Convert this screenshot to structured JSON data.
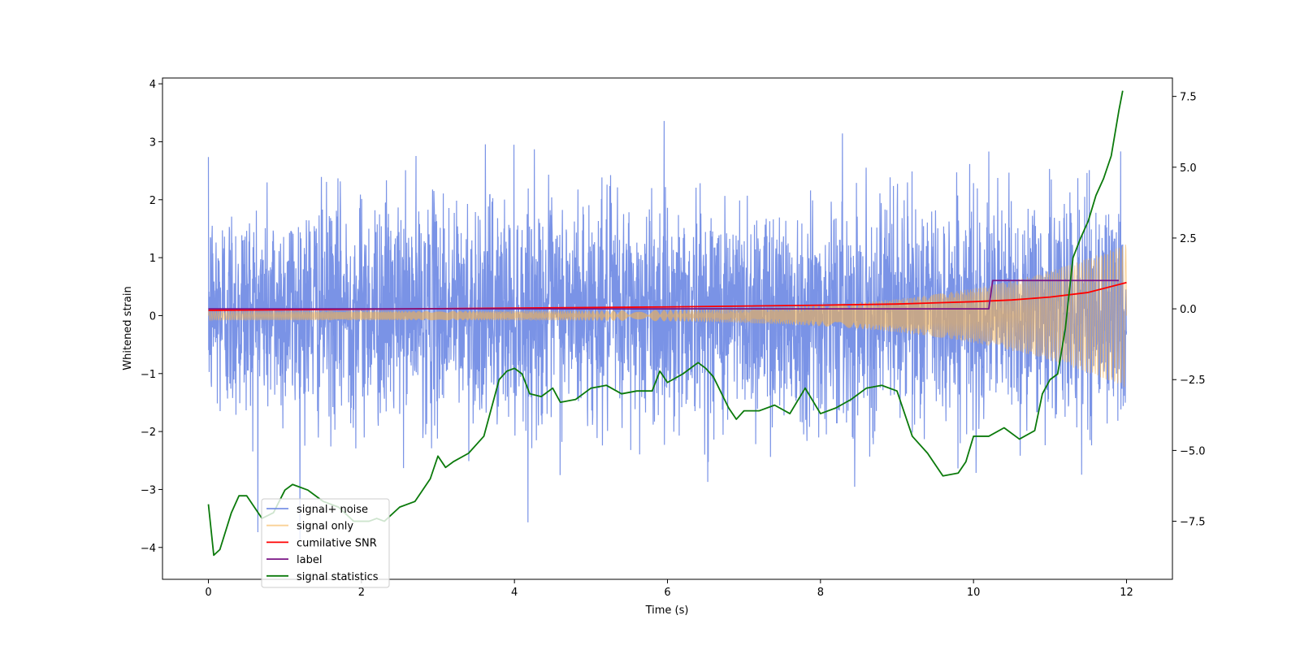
{
  "chart_data": {
    "type": "line",
    "title": "",
    "xlabel": "Time (s)",
    "ylabel": "Whitened strain",
    "y2label": "",
    "xlim": [
      -0.6,
      12.6
    ],
    "ylim": [
      -4.55,
      4.1
    ],
    "y2lim": [
      -9.55,
      8.15
    ],
    "xticks": [
      0,
      2,
      4,
      6,
      8,
      10,
      12
    ],
    "yticks": [
      -4,
      -3,
      -2,
      -1,
      0,
      1,
      2,
      3,
      4
    ],
    "y2ticks": [
      -7.5,
      -5.0,
      -2.5,
      0.0,
      2.5,
      5.0,
      7.5
    ],
    "grid": false,
    "legend_position": "lower-left",
    "series": [
      {
        "name": "signal+ noise",
        "axis": "left",
        "color": "#6b87e3",
        "description_values": {
          "x_start": 0,
          "x_end": 12,
          "mean": 0.1,
          "std": 0.95,
          "min": -4.2,
          "max": 3.8
        }
      },
      {
        "name": "signal only",
        "axis": "left",
        "color": "#f5b24f",
        "description_values": {
          "x_start": 0,
          "x_end": 12,
          "amplitude_start": 0.08,
          "amplitude_end": 1.25
        }
      },
      {
        "name": "cumilative SNR",
        "axis": "left",
        "color": "#ff0000",
        "x": [
          0,
          2,
          4,
          6,
          8,
          9,
          10,
          10.5,
          11,
          11.5,
          12
        ],
        "values": [
          0.09,
          0.11,
          0.13,
          0.15,
          0.18,
          0.2,
          0.24,
          0.27,
          0.32,
          0.4,
          0.57
        ]
      },
      {
        "name": "label",
        "axis": "right",
        "color": "#7a1585",
        "x": [
          0,
          10.2,
          10.25,
          11.9
        ],
        "values": [
          0.0,
          0.0,
          1.0,
          1.0
        ]
      },
      {
        "name": "signal statistics",
        "axis": "right",
        "color": "#0b7a0b",
        "x": [
          0,
          0.07,
          0.15,
          0.3,
          0.4,
          0.5,
          0.7,
          0.85,
          1.0,
          1.1,
          1.3,
          1.5,
          1.7,
          1.9,
          2.1,
          2.2,
          2.3,
          2.5,
          2.7,
          2.9,
          3.0,
          3.1,
          3.2,
          3.4,
          3.6,
          3.8,
          3.9,
          4.0,
          4.1,
          4.2,
          4.35,
          4.5,
          4.6,
          4.8,
          5.0,
          5.2,
          5.4,
          5.6,
          5.8,
          5.9,
          6.0,
          6.2,
          6.4,
          6.5,
          6.6,
          6.8,
          6.9,
          7.0,
          7.2,
          7.4,
          7.6,
          7.8,
          8.0,
          8.2,
          8.4,
          8.6,
          8.8,
          9.0,
          9.2,
          9.4,
          9.6,
          9.8,
          9.9,
          10.0,
          10.2,
          10.4,
          10.6,
          10.8,
          10.9,
          11.0,
          11.1,
          11.2,
          11.3,
          11.4,
          11.5,
          11.6,
          11.7,
          11.8,
          11.9,
          11.95
        ],
        "values": [
          -6.9,
          -8.7,
          -8.5,
          -7.2,
          -6.6,
          -6.6,
          -7.4,
          -7.2,
          -6.4,
          -6.2,
          -6.4,
          -6.8,
          -7.0,
          -7.5,
          -7.5,
          -7.4,
          -7.5,
          -7.0,
          -6.8,
          -6.0,
          -5.2,
          -5.6,
          -5.4,
          -5.1,
          -4.5,
          -2.5,
          -2.2,
          -2.1,
          -2.3,
          -3.0,
          -3.1,
          -2.8,
          -3.3,
          -3.2,
          -2.8,
          -2.7,
          -3.0,
          -2.9,
          -2.9,
          -2.2,
          -2.6,
          -2.3,
          -1.9,
          -2.1,
          -2.4,
          -3.5,
          -3.9,
          -3.6,
          -3.6,
          -3.4,
          -3.7,
          -2.8,
          -3.7,
          -3.5,
          -3.2,
          -2.8,
          -2.7,
          -2.9,
          -4.5,
          -5.1,
          -5.9,
          -5.8,
          -5.4,
          -4.5,
          -4.5,
          -4.2,
          -4.6,
          -4.3,
          -3.0,
          -2.5,
          -2.3,
          -0.7,
          1.8,
          2.5,
          3.1,
          4.0,
          4.6,
          5.4,
          7.0,
          7.7
        ]
      }
    ]
  }
}
